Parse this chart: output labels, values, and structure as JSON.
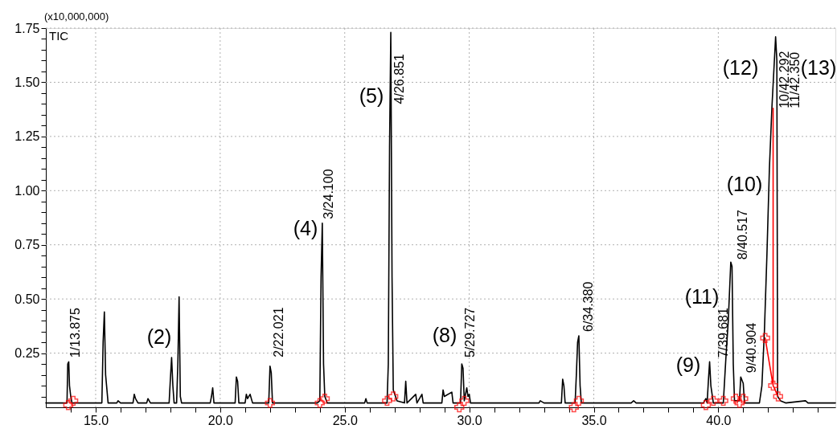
{
  "chart_data": {
    "type": "line",
    "xlim": [
      13.0,
      44.7
    ],
    "ylim": [
      0,
      1.75
    ],
    "xticks": [
      {
        "value": 14,
        "label": null
      },
      {
        "value": 15,
        "label": "15.0"
      },
      {
        "value": 16,
        "label": null
      },
      {
        "value": 17,
        "label": null
      },
      {
        "value": 18,
        "label": null
      },
      {
        "value": 19,
        "label": null
      },
      {
        "value": 20,
        "label": "20.0"
      },
      {
        "value": 21,
        "label": null
      },
      {
        "value": 22,
        "label": null
      },
      {
        "value": 23,
        "label": null
      },
      {
        "value": 24,
        "label": null
      },
      {
        "value": 25,
        "label": "25.0"
      },
      {
        "value": 26,
        "label": null
      },
      {
        "value": 27,
        "label": null
      },
      {
        "value": 28,
        "label": null
      },
      {
        "value": 29,
        "label": null
      },
      {
        "value": 30,
        "label": "30.0"
      },
      {
        "value": 31,
        "label": null
      },
      {
        "value": 32,
        "label": null
      },
      {
        "value": 33,
        "label": null
      },
      {
        "value": 34,
        "label": null
      },
      {
        "value": 35,
        "label": "35.0"
      },
      {
        "value": 36,
        "label": null
      },
      {
        "value": 37,
        "label": null
      },
      {
        "value": 38,
        "label": null
      },
      {
        "value": 39,
        "label": null
      },
      {
        "value": 40,
        "label": "40.0"
      },
      {
        "value": 41,
        "label": null
      },
      {
        "value": 42,
        "label": null
      },
      {
        "value": 43,
        "label": null
      },
      {
        "value": 44,
        "label": null
      }
    ],
    "yticks": [
      {
        "value": 0.05,
        "label": null
      },
      {
        "value": 0.1,
        "label": null
      },
      {
        "value": 0.15,
        "label": null
      },
      {
        "value": 0.2,
        "label": null
      },
      0.25,
      {
        "value": 0.3,
        "label": null
      },
      {
        "value": 0.35,
        "label": null
      },
      {
        "value": 0.4,
        "label": null
      },
      {
        "value": 0.45,
        "label": null
      },
      {
        "value": 0.5,
        "label": "0.50"
      },
      {
        "value": 0.55,
        "label": null
      },
      {
        "value": 0.6,
        "label": null
      },
      {
        "value": 0.65,
        "label": null
      },
      {
        "value": 0.7,
        "label": null
      },
      0.75,
      {
        "value": 0.8,
        "label": null
      },
      {
        "value": 0.85,
        "label": null
      },
      {
        "value": 0.9,
        "label": null
      },
      {
        "value": 0.95,
        "label": null
      },
      {
        "value": 1.0,
        "label": "1.00"
      },
      {
        "value": 1.05,
        "label": null
      },
      {
        "value": 1.1,
        "label": null
      },
      {
        "value": 1.15,
        "label": null
      },
      {
        "value": 1.2,
        "label": null
      },
      1.25,
      {
        "value": 1.3,
        "label": null
      },
      {
        "value": 1.35,
        "label": null
      },
      {
        "value": 1.4,
        "label": null
      },
      {
        "value": 1.45,
        "label": null
      },
      {
        "value": 1.5,
        "label": "1.50"
      },
      {
        "value": 1.55,
        "label": null
      },
      {
        "value": 1.6,
        "label": null
      },
      {
        "value": 1.65,
        "label": null
      },
      {
        "value": 1.7,
        "label": null
      },
      1.75
    ],
    "grid": true,
    "series": [
      {
        "color": "#000000",
        "x": [
          13.0,
          13.85,
          13.88,
          13.92,
          13.95,
          14.0,
          14.05,
          15.25,
          15.3,
          15.35,
          15.4,
          15.5,
          15.85,
          15.9,
          16.0,
          16.5,
          16.55,
          16.6,
          16.7,
          17.05,
          17.1,
          17.2,
          17.95,
          18.0,
          18.05,
          18.1,
          18.15,
          18.25,
          18.3,
          18.35,
          18.4,
          18.45,
          19.6,
          19.65,
          19.7,
          19.75,
          20.6,
          20.65,
          20.7,
          20.75,
          21.0,
          21.05,
          21.1,
          21.2,
          21.3,
          21.95,
          22.0,
          22.05,
          22.1,
          23.9,
          24.0,
          24.05,
          24.1,
          24.15,
          24.2,
          24.3,
          25.8,
          25.85,
          25.9,
          26.7,
          26.75,
          26.8,
          26.85,
          26.9,
          26.95,
          27.1,
          27.4,
          27.45,
          27.5,
          27.85,
          27.9,
          28.1,
          28.15,
          28.9,
          28.95,
          29.0,
          29.3,
          29.35,
          29.65,
          29.7,
          29.75,
          29.8,
          29.9,
          29.95,
          30.0,
          30.05,
          32.8,
          32.85,
          33.0,
          33.7,
          33.75,
          33.8,
          33.85,
          34.25,
          34.3,
          34.35,
          34.4,
          34.45,
          34.5,
          36.5,
          36.6,
          36.7,
          39.4,
          39.5,
          39.55,
          39.6,
          39.65,
          39.7,
          39.8,
          40.2,
          40.3,
          40.4,
          40.5,
          40.55,
          40.6,
          40.65,
          40.85,
          40.9,
          41.0,
          41.05,
          41.65,
          41.75,
          41.85,
          41.95,
          42.05,
          42.15,
          42.25,
          42.3,
          42.35,
          42.38,
          42.5,
          42.7,
          43.5,
          43.6,
          44.7
        ],
        "values": [
          0.02,
          0.02,
          0.2,
          0.21,
          0.1,
          0.05,
          0.02,
          0.02,
          0.3,
          0.44,
          0.15,
          0.02,
          0.02,
          0.03,
          0.02,
          0.02,
          0.06,
          0.04,
          0.02,
          0.02,
          0.04,
          0.02,
          0.02,
          0.13,
          0.23,
          0.1,
          0.02,
          0.02,
          0.2,
          0.51,
          0.05,
          0.02,
          0.02,
          0.05,
          0.09,
          0.02,
          0.02,
          0.14,
          0.12,
          0.02,
          0.02,
          0.06,
          0.04,
          0.06,
          0.02,
          0.02,
          0.19,
          0.16,
          0.02,
          0.02,
          0.03,
          0.6,
          0.85,
          0.2,
          0.05,
          0.02,
          0.02,
          0.04,
          0.02,
          0.02,
          0.2,
          1.2,
          1.73,
          0.6,
          0.08,
          0.03,
          0.02,
          0.12,
          0.02,
          0.06,
          0.02,
          0.06,
          0.02,
          0.02,
          0.08,
          0.05,
          0.07,
          0.02,
          0.02,
          0.2,
          0.18,
          0.03,
          0.09,
          0.05,
          0.06,
          0.02,
          0.02,
          0.03,
          0.02,
          0.02,
          0.13,
          0.1,
          0.02,
          0.02,
          0.15,
          0.3,
          0.33,
          0.1,
          0.02,
          0.02,
          0.03,
          0.02,
          0.02,
          0.04,
          0.02,
          0.12,
          0.21,
          0.1,
          0.02,
          0.02,
          0.22,
          0.4,
          0.67,
          0.65,
          0.2,
          0.03,
          0.03,
          0.14,
          0.11,
          0.02,
          0.02,
          0.1,
          0.35,
          0.7,
          1.1,
          1.38,
          1.6,
          1.71,
          1.6,
          0.05,
          0.03,
          0.02,
          0.03,
          0.02,
          0.02
        ]
      },
      {
        "type": "scatter",
        "color": "#ff0000",
        "marker": "cross",
        "x": [
          13.9,
          14.1,
          22.0,
          24.0,
          24.2,
          26.7,
          26.95,
          29.6,
          29.8,
          34.2,
          34.4,
          39.5,
          39.8,
          40.2,
          40.7,
          40.85,
          41.0,
          41.88,
          42.2,
          42.4
        ],
        "values": [
          0.01,
          0.03,
          0.02,
          0.02,
          0.04,
          0.03,
          0.05,
          0.0,
          0.03,
          0.0,
          0.03,
          0.01,
          0.03,
          0.03,
          0.04,
          0.02,
          0.04,
          0.32,
          0.1,
          0.05
        ]
      },
      {
        "type": "line",
        "color": "#ff0000",
        "x": [
          41.88,
          42.2,
          42.2,
          42.2,
          42.4
        ],
        "values": [
          0.32,
          0.1,
          1.38,
          0.1,
          0.05
        ]
      }
    ],
    "annotations": [
      "(x10,000,000)",
      "TIC",
      {
        "text": "1/13.875",
        "x": 13.92,
        "y": 0.21
      },
      {
        "text": "2/22.021",
        "x": 22.0,
        "y": 0.19
      },
      {
        "text": "3/24.100",
        "x": 24.1,
        "y": 0.85
      },
      {
        "text": "4/26.851",
        "x": 26.85,
        "y": 1.73
      },
      {
        "text": "5/29.727",
        "x": 29.7,
        "y": 0.2
      },
      {
        "text": "6/34.380",
        "x": 34.4,
        "y": 0.33
      },
      {
        "text": "7/39.681",
        "x": 39.65,
        "y": 0.21
      },
      {
        "text": "8/40.517",
        "x": 40.5,
        "y": 0.67
      },
      {
        "text": "9/40.904",
        "x": 40.9,
        "y": 0.14
      },
      {
        "text": "10/42.292",
        "x": 42.3,
        "y": 1.71
      },
      {
        "text": "11/42.350",
        "x": 42.3,
        "y": 1.71
      },
      "(2)",
      "(4)",
      "(5)",
      "(8)",
      "(9)",
      "(11)",
      "(10)",
      "(12)",
      "(13)"
    ]
  }
}
